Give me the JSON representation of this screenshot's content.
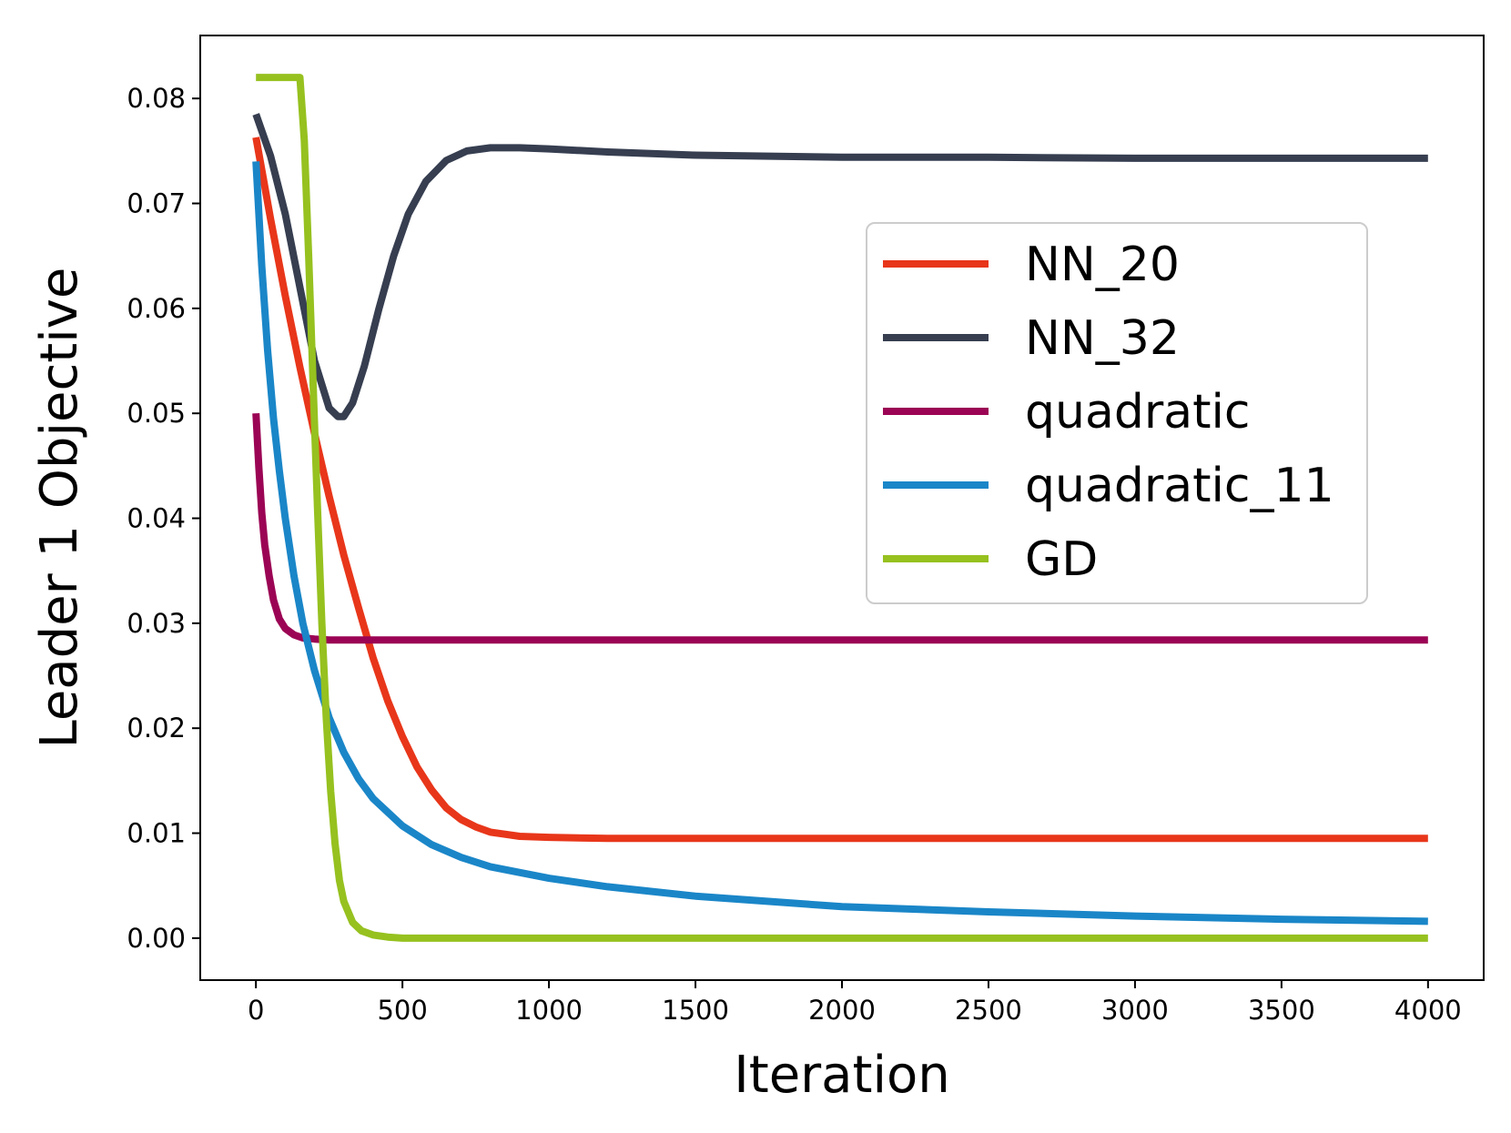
{
  "chart_data": {
    "type": "line",
    "title": "",
    "xlabel": "Iteration",
    "ylabel": "Leader 1 Objective",
    "xlim": [
      -190,
      4190
    ],
    "ylim": [
      -0.004,
      0.086
    ],
    "xticks": [
      0,
      500,
      1000,
      1500,
      2000,
      2500,
      3000,
      3500,
      4000
    ],
    "xtick_labels": [
      "0",
      "500",
      "1000",
      "1500",
      "2000",
      "2500",
      "3000",
      "3500",
      "4000"
    ],
    "yticks": [
      0.0,
      0.01,
      0.02,
      0.03,
      0.04,
      0.05,
      0.06,
      0.07,
      0.08
    ],
    "ytick_labels": [
      "0.00",
      "0.01",
      "0.02",
      "0.03",
      "0.04",
      "0.05",
      "0.06",
      "0.07",
      "0.08"
    ],
    "grid": false,
    "legend_position": "center-right",
    "series": [
      {
        "name": "NN_20",
        "color": "#e8361a",
        "x": [
          0,
          50,
          100,
          150,
          200,
          250,
          300,
          350,
          400,
          450,
          500,
          550,
          600,
          650,
          700,
          750,
          800,
          850,
          900,
          1000,
          1200,
          1500,
          2000,
          2500,
          3000,
          3500,
          4000
        ],
        "y": [
          0.0763,
          0.0685,
          0.0612,
          0.0544,
          0.0481,
          0.0421,
          0.0365,
          0.0315,
          0.0267,
          0.0226,
          0.0192,
          0.0163,
          0.0141,
          0.0124,
          0.0113,
          0.0106,
          0.0101,
          0.0099,
          0.0097,
          0.0096,
          0.0095,
          0.0095,
          0.0095,
          0.0095,
          0.0095,
          0.0095,
          0.0095
        ]
      },
      {
        "name": "NN_32",
        "color": "#363e50",
        "x": [
          0,
          50,
          100,
          150,
          200,
          250,
          280,
          300,
          330,
          370,
          420,
          470,
          520,
          580,
          650,
          720,
          800,
          900,
          1000,
          1200,
          1500,
          2000,
          2500,
          3000,
          3500,
          4000
        ],
        "y": [
          0.0785,
          0.0745,
          0.069,
          0.062,
          0.055,
          0.0505,
          0.0497,
          0.0497,
          0.051,
          0.0545,
          0.06,
          0.065,
          0.069,
          0.0721,
          0.0741,
          0.075,
          0.0753,
          0.0753,
          0.0752,
          0.0749,
          0.0746,
          0.0744,
          0.0744,
          0.0743,
          0.0743,
          0.0743
        ]
      },
      {
        "name": "quadratic",
        "color": "#9b0454",
        "x": [
          0,
          10,
          20,
          30,
          45,
          60,
          80,
          100,
          130,
          160,
          200,
          250,
          300,
          400,
          600,
          1000,
          2000,
          3000,
          4000
        ],
        "y": [
          0.05,
          0.0448,
          0.0405,
          0.0375,
          0.0345,
          0.0322,
          0.0304,
          0.0295,
          0.0289,
          0.0286,
          0.0285,
          0.0284,
          0.0284,
          0.0284,
          0.0284,
          0.0284,
          0.0284,
          0.0284,
          0.0284
        ]
      },
      {
        "name": "quadratic_11",
        "color": "#1a86c8",
        "x": [
          0,
          20,
          40,
          60,
          80,
          100,
          130,
          160,
          200,
          250,
          300,
          350,
          400,
          500,
          600,
          700,
          800,
          1000,
          1200,
          1500,
          2000,
          2500,
          3000,
          3500,
          4000
        ],
        "y": [
          0.074,
          0.064,
          0.056,
          0.0495,
          0.0445,
          0.04,
          0.0345,
          0.03,
          0.0255,
          0.021,
          0.0177,
          0.0152,
          0.0133,
          0.0107,
          0.0089,
          0.0077,
          0.0068,
          0.0057,
          0.0049,
          0.004,
          0.003,
          0.0025,
          0.0021,
          0.0018,
          0.0016
        ]
      },
      {
        "name": "GD",
        "color": "#96c11f",
        "x": [
          0,
          150,
          165,
          180,
          195,
          210,
          225,
          240,
          255,
          270,
          285,
          300,
          330,
          360,
          400,
          450,
          500,
          600,
          1000,
          2000,
          3000,
          4000
        ],
        "y": [
          0.082,
          0.082,
          0.076,
          0.065,
          0.053,
          0.041,
          0.03,
          0.021,
          0.014,
          0.009,
          0.0055,
          0.0035,
          0.0015,
          0.0007,
          0.0003,
          0.0001,
          0.0,
          0.0,
          0.0,
          0.0,
          0.0,
          0.0
        ]
      }
    ]
  }
}
